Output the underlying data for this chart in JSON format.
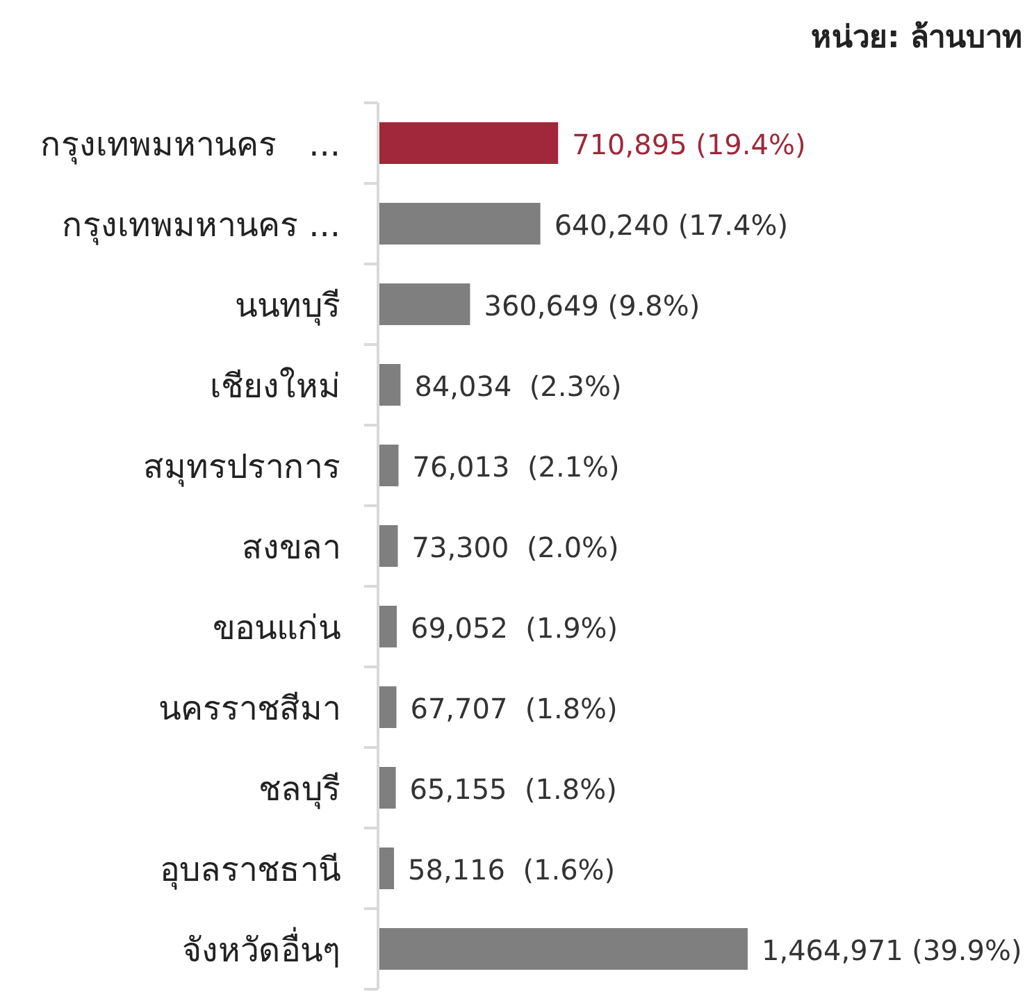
{
  "chart_data": {
    "type": "bar",
    "orientation": "horizontal",
    "annotations": [
      "หน่วย: ล้านบาท"
    ],
    "categories": [
      "กรุงเทพมหานคร   ...",
      "กรุงเทพมหานคร ...",
      "นนทบุรี",
      "เชียงใหม่",
      "สมุทรปราการ",
      "สงขลา",
      "ขอนแก่น",
      "นครราชสีมา",
      "ชลบุรี",
      "อุบลราชธานี",
      "จังหวัดอื่นๆ"
    ],
    "values": [
      710895,
      640240,
      360649,
      84034,
      76013,
      73300,
      69052,
      67707,
      65155,
      58116,
      1464971
    ],
    "colors": [
      "#a0283a",
      "#7f7f7f",
      "#7f7f7f",
      "#7f7f7f",
      "#7f7f7f",
      "#7f7f7f",
      "#7f7f7f",
      "#7f7f7f",
      "#7f7f7f",
      "#7f7f7f",
      "#7f7f7f"
    ],
    "value_labels": [
      "710,895 (19.4%)",
      "640,240 (17.4%)",
      "360,649 (9.8%)",
      "84,034  (2.3%)",
      "76,013  (2.1%)",
      "73,300  (2.0%)",
      "69,052  (1.9%)",
      "67,707  (1.8%)",
      "65,155  (1.8%)",
      "58,116  (1.6%)",
      "1,464,971 (39.9%)"
    ],
    "data_labels": false
  }
}
